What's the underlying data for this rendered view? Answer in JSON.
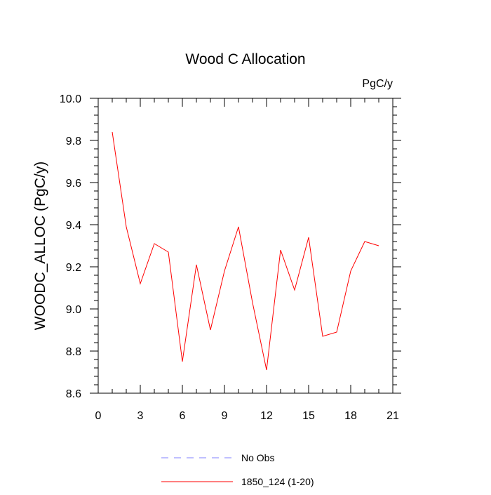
{
  "chart_data": {
    "type": "line",
    "title": "Wood C Allocation",
    "units_label": "PgC/y",
    "ylabel": "WOODC_ALLOC  (PgC/y)",
    "xlabel": "",
    "xlim": [
      0,
      21
    ],
    "ylim": [
      8.6,
      10.0
    ],
    "xticks": [
      0,
      3,
      6,
      9,
      12,
      15,
      18,
      21
    ],
    "yticks": [
      "8.6",
      "8.8",
      "9.0",
      "9.2",
      "9.4",
      "9.6",
      "9.8",
      "10.0"
    ],
    "series": [
      {
        "name": "1850_124 (1-20)",
        "color": "#ff0000",
        "style": "solid",
        "x": [
          1,
          2,
          3,
          4,
          5,
          6,
          7,
          8,
          9,
          10,
          11,
          12,
          13,
          14,
          15,
          16,
          17,
          18,
          19,
          20
        ],
        "values": [
          9.84,
          9.39,
          9.12,
          9.31,
          9.27,
          8.75,
          9.21,
          8.9,
          9.18,
          9.39,
          9.03,
          8.71,
          9.28,
          9.09,
          9.34,
          8.87,
          8.89,
          9.18,
          9.32,
          9.3
        ]
      }
    ],
    "legend": {
      "position": "bottom",
      "entries": [
        {
          "label": "No Obs",
          "color": "#8080ff",
          "style": "dashed"
        },
        {
          "label": "1850_124 (1-20)",
          "color": "#ff0000",
          "style": "solid"
        }
      ]
    }
  }
}
